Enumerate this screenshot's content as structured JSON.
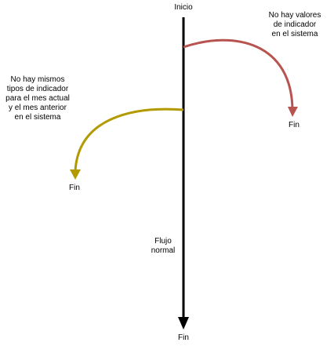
{
  "flow": {
    "start_label": "Inicio",
    "end_label": "Fin",
    "main_path_label": [
      "Flujo",
      "normal"
    ]
  },
  "branches": [
    {
      "condition_lines": [
        "No hay valores",
        "de indicador",
        "en el sistema"
      ],
      "end_label": "Fin",
      "color": "#b85450"
    },
    {
      "condition_lines": [
        "No hay mismos",
        "tipos de indicador",
        "para el mes actual",
        "y el mes anterior",
        "en el sistema"
      ],
      "end_label": "Fin",
      "color": "#b29a00"
    }
  ],
  "main_color": "#000000"
}
